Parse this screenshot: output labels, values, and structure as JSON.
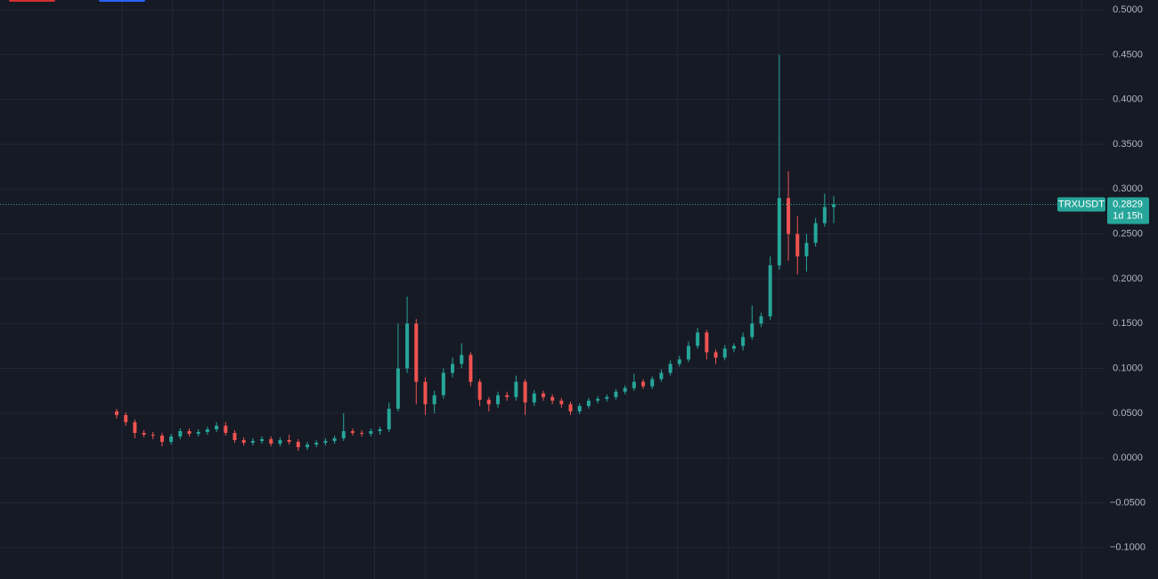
{
  "chart_data": {
    "type": "candlestick",
    "symbol": "TRXUSDT",
    "last_price": 0.2829,
    "countdown": "1d 15h",
    "up_color": "#26a69a",
    "down_color": "#ef5350",
    "grid": true,
    "ylim": [
      -0.135,
      0.511
    ],
    "yticks": [
      {
        "value": 0.5,
        "label": "0.5000"
      },
      {
        "value": 0.45,
        "label": "0.4500"
      },
      {
        "value": 0.4,
        "label": "0.4000"
      },
      {
        "value": 0.35,
        "label": "0.3500"
      },
      {
        "value": 0.3,
        "label": "0.3000"
      },
      {
        "value": 0.25,
        "label": "0.2500"
      },
      {
        "value": 0.2,
        "label": "0.2000"
      },
      {
        "value": 0.15,
        "label": "0.1500"
      },
      {
        "value": 0.1,
        "label": "0.1000"
      },
      {
        "value": 0.05,
        "label": "0.0500"
      },
      {
        "value": 0,
        "label": "0.0000"
      },
      {
        "value": -0.05,
        "label": "−0.0500"
      },
      {
        "value": -0.1,
        "label": "−0.1000"
      }
    ],
    "open": [
      0.052,
      0.048,
      0.04,
      0.028,
      0.026,
      0.025,
      0.018,
      0.024,
      0.03,
      0.027,
      0.029,
      0.032,
      0.036,
      0.028,
      0.02,
      0.017,
      0.019,
      0.021,
      0.016,
      0.02,
      0.018,
      0.012,
      0.015,
      0.017,
      0.019,
      0.022,
      0.03,
      0.028,
      0.027,
      0.03,
      0.032,
      0.055,
      0.1,
      0.15,
      0.085,
      0.06,
      0.07,
      0.095,
      0.105,
      0.115,
      0.085,
      0.065,
      0.06,
      0.07,
      0.068,
      0.085,
      0.062,
      0.072,
      0.068,
      0.064,
      0.06,
      0.052,
      0.058,
      0.064,
      0.066,
      0.068,
      0.074,
      0.078,
      0.085,
      0.08,
      0.088,
      0.095,
      0.105,
      0.11,
      0.125,
      0.14,
      0.118,
      0.112,
      0.122,
      0.125,
      0.135,
      0.15,
      0.158,
      0.215,
      0.29,
      0.25,
      0.225,
      0.24,
      0.262,
      0.28
    ],
    "high": [
      0.055,
      0.051,
      0.043,
      0.031,
      0.029,
      0.028,
      0.027,
      0.033,
      0.033,
      0.032,
      0.035,
      0.04,
      0.04,
      0.031,
      0.023,
      0.022,
      0.024,
      0.024,
      0.023,
      0.026,
      0.021,
      0.018,
      0.02,
      0.022,
      0.025,
      0.05,
      0.033,
      0.031,
      0.033,
      0.035,
      0.062,
      0.15,
      0.18,
      0.155,
      0.09,
      0.075,
      0.1,
      0.112,
      0.128,
      0.118,
      0.088,
      0.068,
      0.074,
      0.074,
      0.092,
      0.088,
      0.076,
      0.075,
      0.071,
      0.067,
      0.063,
      0.061,
      0.067,
      0.069,
      0.071,
      0.077,
      0.081,
      0.094,
      0.088,
      0.091,
      0.099,
      0.109,
      0.114,
      0.13,
      0.145,
      0.143,
      0.121,
      0.126,
      0.128,
      0.14,
      0.17,
      0.162,
      0.225,
      0.45,
      0.32,
      0.27,
      0.25,
      0.268,
      0.295,
      0.292
    ],
    "low": [
      0.044,
      0.036,
      0.022,
      0.023,
      0.021,
      0.013,
      0.015,
      0.021,
      0.024,
      0.024,
      0.026,
      0.029,
      0.025,
      0.017,
      0.014,
      0.014,
      0.016,
      0.013,
      0.013,
      0.015,
      0.008,
      0.009,
      0.012,
      0.014,
      0.016,
      0.019,
      0.025,
      0.024,
      0.024,
      0.026,
      0.029,
      0.052,
      0.095,
      0.06,
      0.048,
      0.05,
      0.066,
      0.09,
      0.1,
      0.08,
      0.058,
      0.052,
      0.056,
      0.064,
      0.064,
      0.048,
      0.058,
      0.064,
      0.06,
      0.056,
      0.048,
      0.049,
      0.055,
      0.061,
      0.063,
      0.065,
      0.071,
      0.075,
      0.077,
      0.077,
      0.085,
      0.092,
      0.102,
      0.107,
      0.122,
      0.11,
      0.105,
      0.109,
      0.118,
      0.12,
      0.132,
      0.146,
      0.154,
      0.21,
      0.22,
      0.205,
      0.208,
      0.236,
      0.258,
      0.262
    ],
    "close": [
      0.048,
      0.04,
      0.028,
      0.026,
      0.025,
      0.018,
      0.024,
      0.03,
      0.027,
      0.029,
      0.032,
      0.036,
      0.028,
      0.02,
      0.017,
      0.019,
      0.021,
      0.016,
      0.02,
      0.018,
      0.012,
      0.015,
      0.017,
      0.019,
      0.022,
      0.03,
      0.028,
      0.027,
      0.03,
      0.032,
      0.055,
      0.1,
      0.15,
      0.085,
      0.06,
      0.07,
      0.095,
      0.105,
      0.115,
      0.085,
      0.065,
      0.06,
      0.07,
      0.068,
      0.085,
      0.062,
      0.072,
      0.068,
      0.064,
      0.06,
      0.052,
      0.058,
      0.064,
      0.066,
      0.068,
      0.074,
      0.078,
      0.085,
      0.08,
      0.088,
      0.095,
      0.105,
      0.11,
      0.125,
      0.14,
      0.118,
      0.112,
      0.122,
      0.125,
      0.135,
      0.15,
      0.158,
      0.215,
      0.29,
      0.25,
      0.225,
      0.24,
      0.262,
      0.28,
      0.2829
    ]
  }
}
